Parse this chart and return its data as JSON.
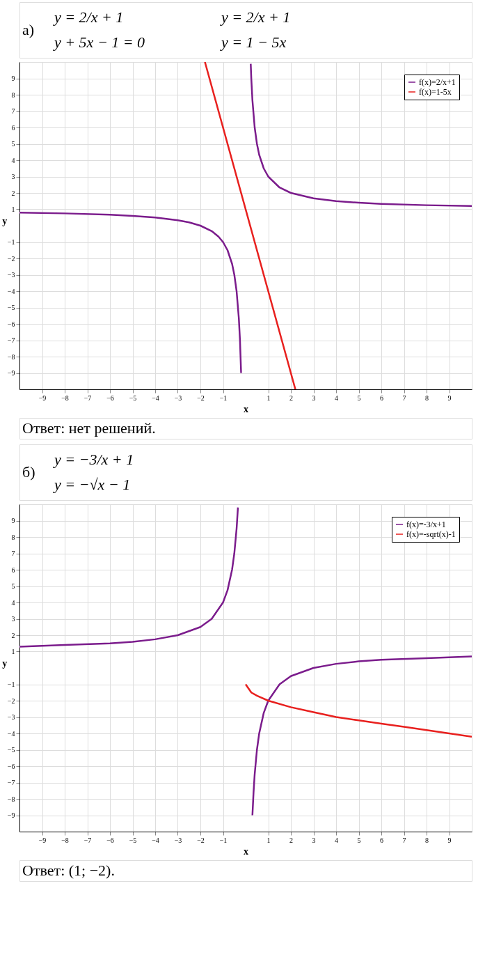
{
  "chart_data": [
    {
      "type": "line",
      "title": "а)",
      "xlabel": "x",
      "ylabel": "y",
      "annotations": [
        "y = 2/x + 1",
        "y + 5x − 1 = 0",
        "y = 2/x + 1",
        "y = 1 − 5x",
        "Ответ: нет решений."
      ],
      "xlim": [
        -10,
        10
      ],
      "ylim": [
        -10,
        10
      ],
      "xticks": [
        -9,
        -8,
        -7,
        -6,
        -5,
        -4,
        -3,
        -2,
        -1,
        1,
        2,
        3,
        4,
        5,
        6,
        7,
        8,
        9
      ],
      "yticks": [
        -9,
        -8,
        -7,
        -6,
        -5,
        -4,
        -3,
        -2,
        -1,
        1,
        2,
        3,
        4,
        5,
        6,
        7,
        8,
        9
      ],
      "grid": true,
      "legend": "top right",
      "marker": "none",
      "line_style": "solid",
      "series": [
        {
          "name": "f(x)=2/x+1",
          "color": "#7b1c8c",
          "x": [
            -10,
            -8,
            -6,
            -5,
            -4,
            -3,
            -2.5,
            -2,
            -1.5,
            -1.2,
            -1,
            -0.8,
            -0.6,
            -0.5,
            -0.4,
            -0.3,
            -0.25,
            -0.2,
            0,
            0.225,
            0.25,
            0.3,
            0.4,
            0.5,
            0.6,
            0.8,
            1,
            1.5,
            2,
            3,
            4,
            5,
            6,
            8,
            10
          ],
          "values": [
            0.8,
            0.75,
            0.67,
            0.6,
            0.5,
            0.33,
            0.2,
            0,
            -0.33,
            -0.67,
            -1,
            -1.5,
            -2.33,
            -3,
            -4,
            -5.67,
            -7,
            -9,
            null,
            9.89,
            9,
            7.67,
            6,
            5,
            4.33,
            3.5,
            3,
            2.33,
            2,
            1.67,
            1.5,
            1.4,
            1.33,
            1.25,
            1.2
          ]
        },
        {
          "name": "f(x)=1-5x",
          "color": "#e8201e",
          "x": [
            -1.8,
            2.2
          ],
          "values": [
            10,
            -10
          ]
        }
      ]
    },
    {
      "type": "line",
      "title": "б)",
      "xlabel": "x",
      "ylabel": "y",
      "annotations": [
        "y = −3/x + 1",
        "y = −√x − 1",
        "Ответ: (1; −2)."
      ],
      "xlim": [
        -10,
        10
      ],
      "ylim": [
        -10,
        10
      ],
      "xticks": [
        -9,
        -8,
        -7,
        -6,
        -5,
        -4,
        -3,
        -2,
        -1,
        1,
        2,
        3,
        4,
        5,
        6,
        7,
        8,
        9
      ],
      "yticks": [
        -9,
        -8,
        -7,
        -6,
        -5,
        -4,
        -3,
        -2,
        -1,
        1,
        2,
        3,
        4,
        5,
        6,
        7,
        8,
        9
      ],
      "grid": true,
      "legend": "top right",
      "marker": "none",
      "line_style": "solid",
      "series": [
        {
          "name": "f(x)=-3/x+1",
          "color": "#7b1c8c",
          "x": [
            -10,
            -8,
            -6,
            -5,
            -4,
            -3,
            -2,
            -1.5,
            -1,
            -0.8,
            -0.6,
            -0.5,
            -0.4,
            -0.34,
            0,
            0.3,
            0.35,
            0.4,
            0.5,
            0.6,
            0.8,
            1,
            1.5,
            2,
            3,
            4,
            5,
            6,
            8,
            10
          ],
          "values": [
            1.3,
            1.4,
            1.5,
            1.6,
            1.75,
            2,
            2.5,
            3,
            4,
            4.75,
            6,
            7,
            8.5,
            9.8,
            null,
            -9,
            -7.6,
            -6.5,
            -5,
            -4,
            -2.75,
            -2,
            -1,
            -0.5,
            0,
            0.25,
            0.4,
            0.5,
            0.6,
            0.7
          ]
        },
        {
          "name": "f(x)=-sqrt(x)-1",
          "color": "#e8201e",
          "x": [
            0,
            0.25,
            0.5,
            1,
            2,
            3,
            4,
            5,
            6,
            7,
            8,
            9,
            10
          ],
          "values": [
            -1,
            -1.5,
            -1.7,
            -2,
            -2.4,
            -2.7,
            -3,
            -3.2,
            -3.4,
            -3.6,
            -3.8,
            -4,
            -4.2
          ]
        }
      ]
    }
  ]
}
